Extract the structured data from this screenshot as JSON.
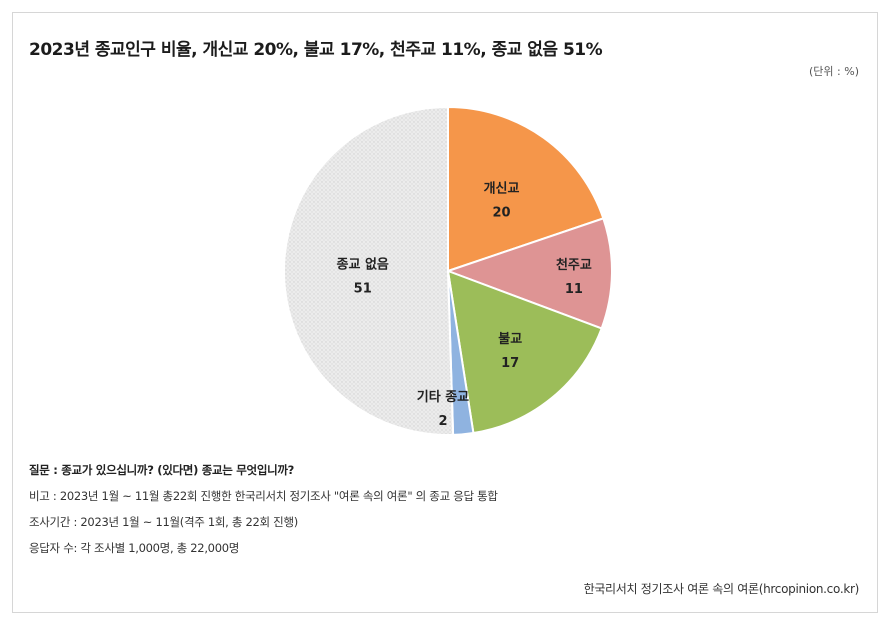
{
  "title": "2023년 종교인구 비율, 개신교 20%, 불교 17%, 천주교 11%, 종교 없음 51%",
  "unit": "(단위 : %)",
  "notes": {
    "question": "질문 : 종교가 있으십니까? (있다면) 종교는 무엇입니까?",
    "remark": "비고 : 2023년 1월 ~ 11월 총22회 진행한 한국리서치 정기조사 \"여론 속의 여론\" 의 종교 응답 통합",
    "period": "조사기간 : 2023년 1월 ~ 11월(격주 1회, 총 22회 진행)",
    "respondents": "응답자 수: 각 조사별 1,000명, 총 22,000명"
  },
  "source": "한국리서치 정기조사 여론 속의 여론(hrcopinion.co.kr)",
  "chart_data": {
    "type": "pie",
    "start": "12 o'clock",
    "direction": "clockwise",
    "slices": [
      {
        "label": "개신교",
        "value": 20,
        "value_label": "20",
        "color": "#f5964a"
      },
      {
        "label": "천주교",
        "value": 11,
        "value_label": "11",
        "color": "#de9494"
      },
      {
        "label": "불교",
        "value": 17,
        "value_label": "17",
        "color": "#9cbd59"
      },
      {
        "label": "기타 종교",
        "value": 2,
        "value_label": "2",
        "color": "#8fb3e0"
      },
      {
        "label": "종교 없음",
        "value": 51,
        "value_label": "51",
        "color": "#ebebeb",
        "pattern": "dots"
      }
    ]
  }
}
